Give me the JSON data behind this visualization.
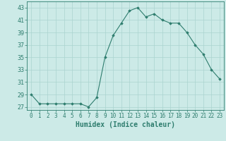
{
  "x": [
    0,
    1,
    2,
    3,
    4,
    5,
    6,
    7,
    8,
    9,
    10,
    11,
    12,
    13,
    14,
    15,
    16,
    17,
    18,
    19,
    20,
    21,
    22,
    23
  ],
  "y": [
    29,
    27.5,
    27.5,
    27.5,
    27.5,
    27.5,
    27.5,
    27,
    28.5,
    35,
    38.5,
    40.5,
    42.5,
    43,
    41.5,
    42,
    41,
    40.5,
    40.5,
    39,
    37,
    35.5,
    33,
    31.5
  ],
  "line_color": "#2e7d6e",
  "marker": "D",
  "marker_size": 1.8,
  "bg_color": "#cceae7",
  "grid_color": "#aad4d0",
  "xlabel": "Humidex (Indice chaleur)",
  "ylabel_ticks": [
    27,
    29,
    31,
    33,
    35,
    37,
    39,
    41,
    43
  ],
  "ylim": [
    26.5,
    44.0
  ],
  "xlim": [
    -0.5,
    23.5
  ],
  "tick_color": "#2e7d6e",
  "xlabel_fontsize": 7.0,
  "ytick_fontsize": 6.0,
  "xtick_fontsize": 5.5
}
